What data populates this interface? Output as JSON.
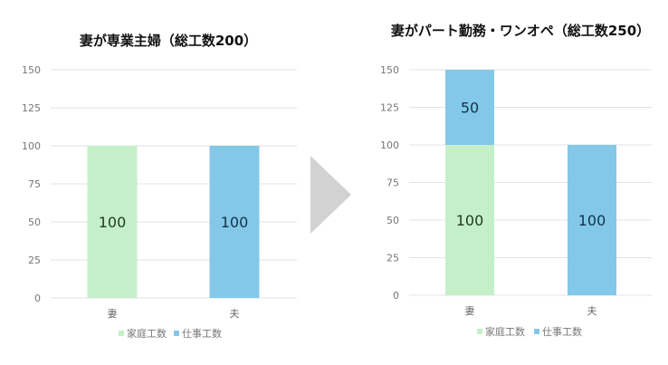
{
  "colors": {
    "household": "#c5efc9",
    "work": "#83c8e8",
    "grid": "#e3e3e3",
    "arrow": "#d2d2d2",
    "label_green": "#1f3a1f",
    "label_blue": "#12324a"
  },
  "chart_data": [
    {
      "type": "bar",
      "stacked": true,
      "title": "妻が専業主婦（総工数200）",
      "categories": [
        "妻",
        "夫"
      ],
      "series": [
        {
          "name": "家庭工数",
          "values": [
            100,
            0
          ]
        },
        {
          "name": "仕事工数",
          "values": [
            0,
            100
          ]
        }
      ],
      "yticks": [
        0,
        25,
        50,
        75,
        100,
        125,
        150
      ],
      "ylim": [
        0,
        150
      ],
      "grid": true,
      "legend": "bottom"
    },
    {
      "type": "bar",
      "stacked": true,
      "title": "妻がパート勤務・ワンオペ（総工数250）",
      "categories": [
        "妻",
        "夫"
      ],
      "series": [
        {
          "name": "家庭工数",
          "values": [
            100,
            0
          ]
        },
        {
          "name": "仕事工数",
          "values": [
            50,
            100
          ]
        }
      ],
      "yticks": [
        0,
        25,
        50,
        75,
        100,
        125,
        150
      ],
      "ylim": [
        0,
        150
      ],
      "grid": true,
      "legend": "bottom"
    }
  ]
}
